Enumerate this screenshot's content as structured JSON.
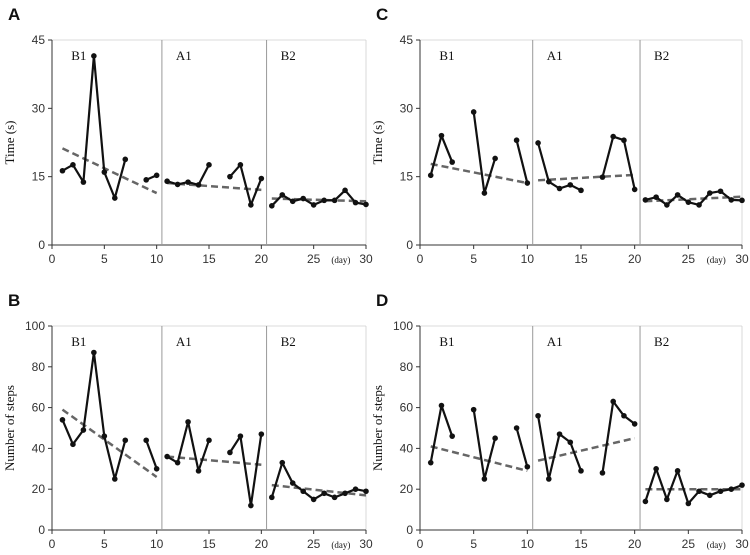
{
  "chart_data": [
    {
      "panel": "A",
      "type": "line",
      "ylabel": "Time (s)",
      "xunit": "(day)",
      "ylim": [
        0,
        45
      ],
      "yticks": [
        0,
        15,
        30,
        45
      ],
      "xlim": [
        0,
        30
      ],
      "xticks": [
        0,
        5,
        10,
        15,
        20,
        25,
        30
      ],
      "phases": [
        {
          "label": "B1",
          "start": 0.5,
          "end": 10.5
        },
        {
          "label": "A1",
          "start": 10.5,
          "end": 20.5
        },
        {
          "label": "B2",
          "start": 20.5,
          "end": 30
        }
      ],
      "segments": [
        [
          [
            1,
            16.3
          ],
          [
            2,
            17.6
          ],
          [
            3,
            13.8
          ],
          [
            4,
            41.5
          ],
          [
            5,
            16.0
          ],
          [
            6,
            10.3
          ],
          [
            7,
            18.8
          ]
        ],
        [
          [
            9,
            14.3
          ],
          [
            10,
            15.3
          ]
        ],
        [
          [
            11,
            14.0
          ],
          [
            12,
            13.3
          ],
          [
            13,
            13.8
          ],
          [
            14,
            13.2
          ],
          [
            15,
            17.6
          ]
        ],
        [
          [
            17,
            15.0
          ],
          [
            18,
            17.6
          ],
          [
            19,
            8.8
          ],
          [
            20,
            14.6
          ]
        ],
        [
          [
            21,
            8.6
          ],
          [
            22,
            11.0
          ],
          [
            23,
            9.6
          ],
          [
            24,
            10.2
          ],
          [
            25,
            8.8
          ],
          [
            26,
            9.8
          ],
          [
            27,
            9.8
          ],
          [
            28,
            12.0
          ],
          [
            29,
            9.3
          ],
          [
            30,
            8.9
          ]
        ]
      ],
      "trends": [
        [
          [
            1,
            21.2
          ],
          [
            10,
            11.4
          ]
        ],
        [
          [
            11,
            13.6
          ],
          [
            20,
            12.1
          ]
        ],
        [
          [
            21,
            10.2
          ],
          [
            30,
            9.6
          ]
        ]
      ]
    },
    {
      "panel": "C",
      "type": "line",
      "ylabel": "Time (s)",
      "xunit": "(day)",
      "ylim": [
        0,
        45
      ],
      "yticks": [
        0,
        15,
        30,
        45
      ],
      "xlim": [
        0,
        30
      ],
      "xticks": [
        0,
        5,
        10,
        15,
        20,
        25,
        30
      ],
      "phases": [
        {
          "label": "B1",
          "start": 0.5,
          "end": 10.5
        },
        {
          "label": "A1",
          "start": 10.5,
          "end": 20.5
        },
        {
          "label": "B2",
          "start": 20.5,
          "end": 30
        }
      ],
      "segments": [
        [
          [
            1,
            15.3
          ],
          [
            2,
            24.0
          ],
          [
            3,
            18.2
          ]
        ],
        [
          [
            5,
            29.2
          ],
          [
            6,
            11.4
          ],
          [
            7,
            19.0
          ]
        ],
        [
          [
            9,
            23.0
          ],
          [
            10,
            13.6
          ]
        ],
        [
          [
            11,
            22.4
          ],
          [
            12,
            13.9
          ],
          [
            13,
            12.4
          ],
          [
            14,
            13.2
          ],
          [
            15,
            12.0
          ]
        ],
        [
          [
            17,
            14.9
          ],
          [
            18,
            23.8
          ],
          [
            19,
            23.0
          ],
          [
            20,
            12.2
          ]
        ],
        [
          [
            21,
            9.9
          ],
          [
            22,
            10.5
          ],
          [
            23,
            8.8
          ],
          [
            24,
            11.0
          ],
          [
            25,
            9.4
          ],
          [
            26,
            8.8
          ],
          [
            27,
            11.4
          ],
          [
            28,
            11.8
          ],
          [
            29,
            9.9
          ],
          [
            30,
            9.8
          ]
        ]
      ],
      "trends": [
        [
          [
            1,
            17.8
          ],
          [
            10,
            13.6
          ]
        ],
        [
          [
            11,
            14.2
          ],
          [
            20,
            15.4
          ]
        ],
        [
          [
            21,
            9.6
          ],
          [
            30,
            10.6
          ]
        ]
      ]
    },
    {
      "panel": "B",
      "type": "line",
      "ylabel": "Number of steps",
      "xunit": "(day)",
      "ylim": [
        0,
        100
      ],
      "yticks": [
        0,
        20,
        40,
        60,
        80,
        100
      ],
      "xlim": [
        0,
        30
      ],
      "xticks": [
        0,
        5,
        10,
        15,
        20,
        25,
        30
      ],
      "phases": [
        {
          "label": "B1",
          "start": 0.5,
          "end": 10.5
        },
        {
          "label": "A1",
          "start": 10.5,
          "end": 20.5
        },
        {
          "label": "B2",
          "start": 20.5,
          "end": 30
        }
      ],
      "segments": [
        [
          [
            1,
            54
          ],
          [
            2,
            42
          ],
          [
            3,
            49
          ],
          [
            4,
            87
          ],
          [
            5,
            46
          ],
          [
            6,
            25
          ],
          [
            7,
            44
          ]
        ],
        [
          [
            9,
            44
          ],
          [
            10,
            30
          ]
        ],
        [
          [
            11,
            36
          ],
          [
            12,
            33
          ],
          [
            13,
            53
          ],
          [
            14,
            29
          ],
          [
            15,
            44
          ]
        ],
        [
          [
            17,
            38
          ],
          [
            18,
            46
          ],
          [
            19,
            12
          ],
          [
            20,
            47
          ]
        ],
        [
          [
            21,
            16
          ],
          [
            22,
            33
          ],
          [
            23,
            23
          ],
          [
            24,
            19
          ],
          [
            25,
            15
          ],
          [
            26,
            18
          ],
          [
            27,
            16
          ],
          [
            28,
            18
          ],
          [
            29,
            20
          ],
          [
            30,
            19
          ]
        ]
      ],
      "trends": [
        [
          [
            1,
            59
          ],
          [
            10,
            26
          ]
        ],
        [
          [
            11,
            36
          ],
          [
            20,
            32
          ]
        ],
        [
          [
            21,
            22
          ],
          [
            30,
            17
          ]
        ]
      ]
    },
    {
      "panel": "D",
      "type": "line",
      "ylabel": "Number of steps",
      "xunit": "(day)",
      "ylim": [
        0,
        100
      ],
      "yticks": [
        0,
        20,
        40,
        60,
        80,
        100
      ],
      "xlim": [
        0,
        30
      ],
      "xticks": [
        0,
        5,
        10,
        15,
        20,
        25,
        30
      ],
      "phases": [
        {
          "label": "B1",
          "start": 0.5,
          "end": 10.5
        },
        {
          "label": "A1",
          "start": 10.5,
          "end": 20.5
        },
        {
          "label": "B2",
          "start": 20.5,
          "end": 30
        }
      ],
      "segments": [
        [
          [
            1,
            33
          ],
          [
            2,
            61
          ],
          [
            3,
            46
          ]
        ],
        [
          [
            5,
            59
          ],
          [
            6,
            25
          ],
          [
            7,
            45
          ]
        ],
        [
          [
            9,
            50
          ],
          [
            10,
            31
          ]
        ],
        [
          [
            11,
            56
          ],
          [
            12,
            25
          ],
          [
            13,
            47
          ],
          [
            14,
            43
          ],
          [
            15,
            29
          ]
        ],
        [
          [
            17,
            28
          ],
          [
            18,
            63
          ],
          [
            19,
            56
          ],
          [
            20,
            52
          ]
        ],
        [
          [
            21,
            14
          ],
          [
            22,
            30
          ],
          [
            23,
            15
          ],
          [
            24,
            29
          ],
          [
            25,
            13
          ],
          [
            26,
            19
          ],
          [
            27,
            17
          ],
          [
            28,
            19
          ],
          [
            29,
            20
          ],
          [
            30,
            22
          ]
        ]
      ],
      "trends": [
        [
          [
            1,
            41
          ],
          [
            10,
            29
          ]
        ],
        [
          [
            11,
            34
          ],
          [
            20,
            45
          ]
        ],
        [
          [
            21,
            20
          ],
          [
            30,
            20
          ]
        ]
      ]
    }
  ]
}
